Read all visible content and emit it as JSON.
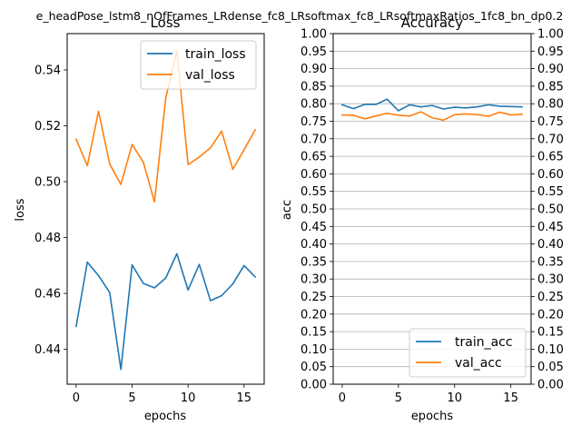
{
  "figure": {
    "suptitle": "e_headPose_lstm8_nOfFrames_LRdense_fc8_LRsoftmax_fc8_LRsoftmaxRatios_1fc8_bn_dp0.2"
  },
  "chart_data": [
    {
      "type": "line",
      "title": "Loss",
      "xlabel": "epochs",
      "ylabel": "loss",
      "xlim": [
        -0.8,
        16.8
      ],
      "ylim": [
        0.4275,
        0.553
      ],
      "xticks": [
        0,
        5,
        10,
        15
      ],
      "yticks": [
        0.44,
        0.46,
        0.48,
        0.5,
        0.52,
        0.54
      ],
      "ytick_labels": [
        "0.44",
        "0.46",
        "0.48",
        "0.50",
        "0.52",
        "0.54"
      ],
      "grid": false,
      "legend": "top-right",
      "x": [
        0,
        1,
        2,
        3,
        4,
        5,
        6,
        7,
        8,
        9,
        10,
        11,
        12,
        13,
        14,
        15,
        16
      ],
      "series": [
        {
          "name": "train_loss",
          "color": "#1f77b4",
          "values": [
            0.4482,
            0.4712,
            0.4664,
            0.4603,
            0.4328,
            0.4702,
            0.4636,
            0.462,
            0.4655,
            0.4742,
            0.4612,
            0.4704,
            0.4574,
            0.4592,
            0.4634,
            0.47,
            0.4659
          ]
        },
        {
          "name": "val_loss",
          "color": "#ff7f0e",
          "values": [
            0.5152,
            0.5057,
            0.5252,
            0.5063,
            0.499,
            0.5133,
            0.507,
            0.4928,
            0.5298,
            0.5469,
            0.5061,
            0.5088,
            0.5121,
            0.5181,
            0.5044,
            0.5114,
            0.5186
          ]
        }
      ]
    },
    {
      "type": "line",
      "title": "Accuracy",
      "xlabel": "epochs",
      "ylabel": "acc",
      "xlim": [
        -0.8,
        16.8
      ],
      "ylim": [
        0.0,
        1.0
      ],
      "xticks": [
        0,
        5,
        10,
        15
      ],
      "yticks": [
        0.0,
        0.05,
        0.1,
        0.15,
        0.2,
        0.25,
        0.3,
        0.35,
        0.4,
        0.45,
        0.5,
        0.55,
        0.6,
        0.65,
        0.7,
        0.75,
        0.8,
        0.85,
        0.9,
        0.95,
        1.0
      ],
      "ytick_labels": [
        "0.00",
        "0.05",
        "0.10",
        "0.15",
        "0.20",
        "0.25",
        "0.30",
        "0.35",
        "0.40",
        "0.45",
        "0.50",
        "0.55",
        "0.60",
        "0.65",
        "0.70",
        "0.75",
        "0.80",
        "0.85",
        "0.90",
        "0.95",
        "1.00"
      ],
      "right_ticks": true,
      "grid": "horizontal",
      "legend": "bottom-right",
      "x": [
        0,
        1,
        2,
        3,
        4,
        5,
        6,
        7,
        8,
        9,
        10,
        11,
        12,
        13,
        14,
        15,
        16
      ],
      "series": [
        {
          "name": "train_acc",
          "color": "#1f77b4",
          "values": [
            0.797,
            0.786,
            0.798,
            0.798,
            0.813,
            0.78,
            0.797,
            0.791,
            0.795,
            0.785,
            0.79,
            0.788,
            0.791,
            0.797,
            0.793,
            0.792,
            0.791
          ]
        },
        {
          "name": "val_acc",
          "color": "#ff7f0e",
          "values": [
            0.768,
            0.767,
            0.757,
            0.765,
            0.773,
            0.767,
            0.765,
            0.777,
            0.76,
            0.753,
            0.769,
            0.771,
            0.769,
            0.764,
            0.776,
            0.768,
            0.77
          ]
        }
      ]
    }
  ]
}
